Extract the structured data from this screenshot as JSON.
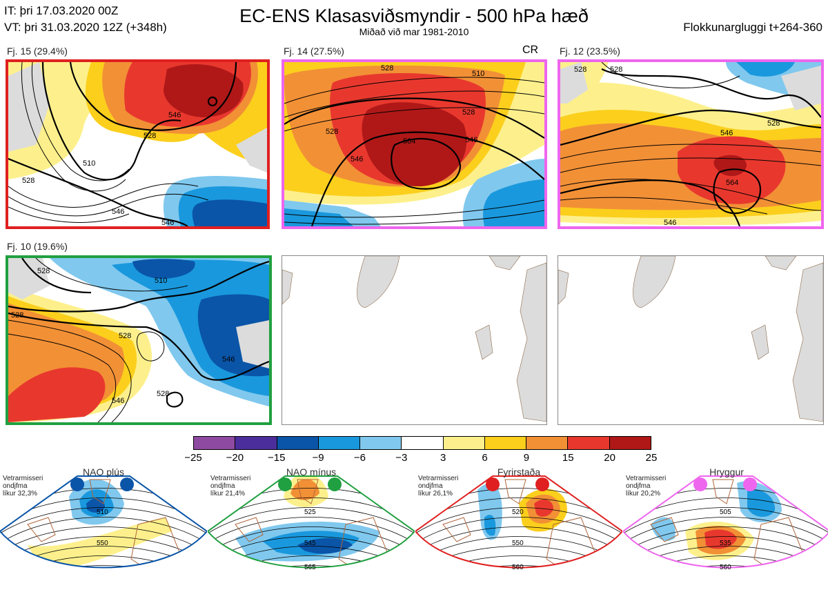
{
  "header": {
    "it_line": "IT: þri 17.03.2020 00Z",
    "vt_line": "VT: þri 31.03.2020 12Z  (+348h)",
    "title": "EC-ENS Klasasviðsmyndir - 500 hPa hæð",
    "subtitle": "Miðað við mar 1981-2010",
    "right": "Flokkunargluggi t+264-360"
  },
  "panels": [
    {
      "label": "Fj. 15 (29.4%)",
      "border": "#e02020",
      "contours": [
        "510",
        "528",
        "546",
        "546",
        "528",
        "546"
      ]
    },
    {
      "label": "Fj. 14 (27.5%)",
      "border": "#ee66ee",
      "extra": "CR",
      "contours": [
        "528",
        "510",
        "528",
        "546",
        "564",
        "528",
        "546"
      ]
    },
    {
      "label": "Fj. 12 (23.5%)",
      "border": "#ee66ee",
      "contours": [
        "528",
        "528",
        "546",
        "528",
        "564",
        "546"
      ]
    },
    {
      "label": "Fj. 10 (19.6%)",
      "border": "#20a040",
      "contours": [
        "528",
        "510",
        "528",
        "528",
        "546",
        "528",
        "546"
      ]
    }
  ],
  "colorbar": {
    "colors": [
      "#8e4aa0",
      "#4b2e9c",
      "#0a55a8",
      "#1a98dd",
      "#80c8ee",
      "#ffffff",
      "#fdf08c",
      "#fbcf1c",
      "#f29036",
      "#e8382e",
      "#b01818"
    ],
    "ticks": [
      "−25",
      "−20",
      "−15",
      "−9",
      "−6",
      "−3",
      "3",
      "6",
      "9",
      "15",
      "20",
      "25"
    ]
  },
  "regimes": [
    {
      "title": "NAO plús",
      "info": [
        "Vetrarmisseri",
        "ondjfma",
        "líkur 32,3%"
      ],
      "color": "#0a55a8",
      "contours": [
        "510",
        "550"
      ]
    },
    {
      "title": "NAO mínus",
      "info": [
        "Vetrarmisseri",
        "ondjfma",
        "líkur 21,4%"
      ],
      "color": "#20a040",
      "contours": [
        "525",
        "545",
        "565"
      ]
    },
    {
      "title": "Fyrirstaða",
      "info": [
        "Vetrarmisseri",
        "ondjfma",
        "líkur 26,1%"
      ],
      "color": "#e02020",
      "contours": [
        "520",
        "550",
        "560"
      ]
    },
    {
      "title": "Hryggur",
      "info": [
        "Vetrarmisseri",
        "ondjfma",
        "líkur 20,2%"
      ],
      "color": "#ee66ee",
      "contours": [
        "505",
        "535",
        "560"
      ]
    }
  ]
}
